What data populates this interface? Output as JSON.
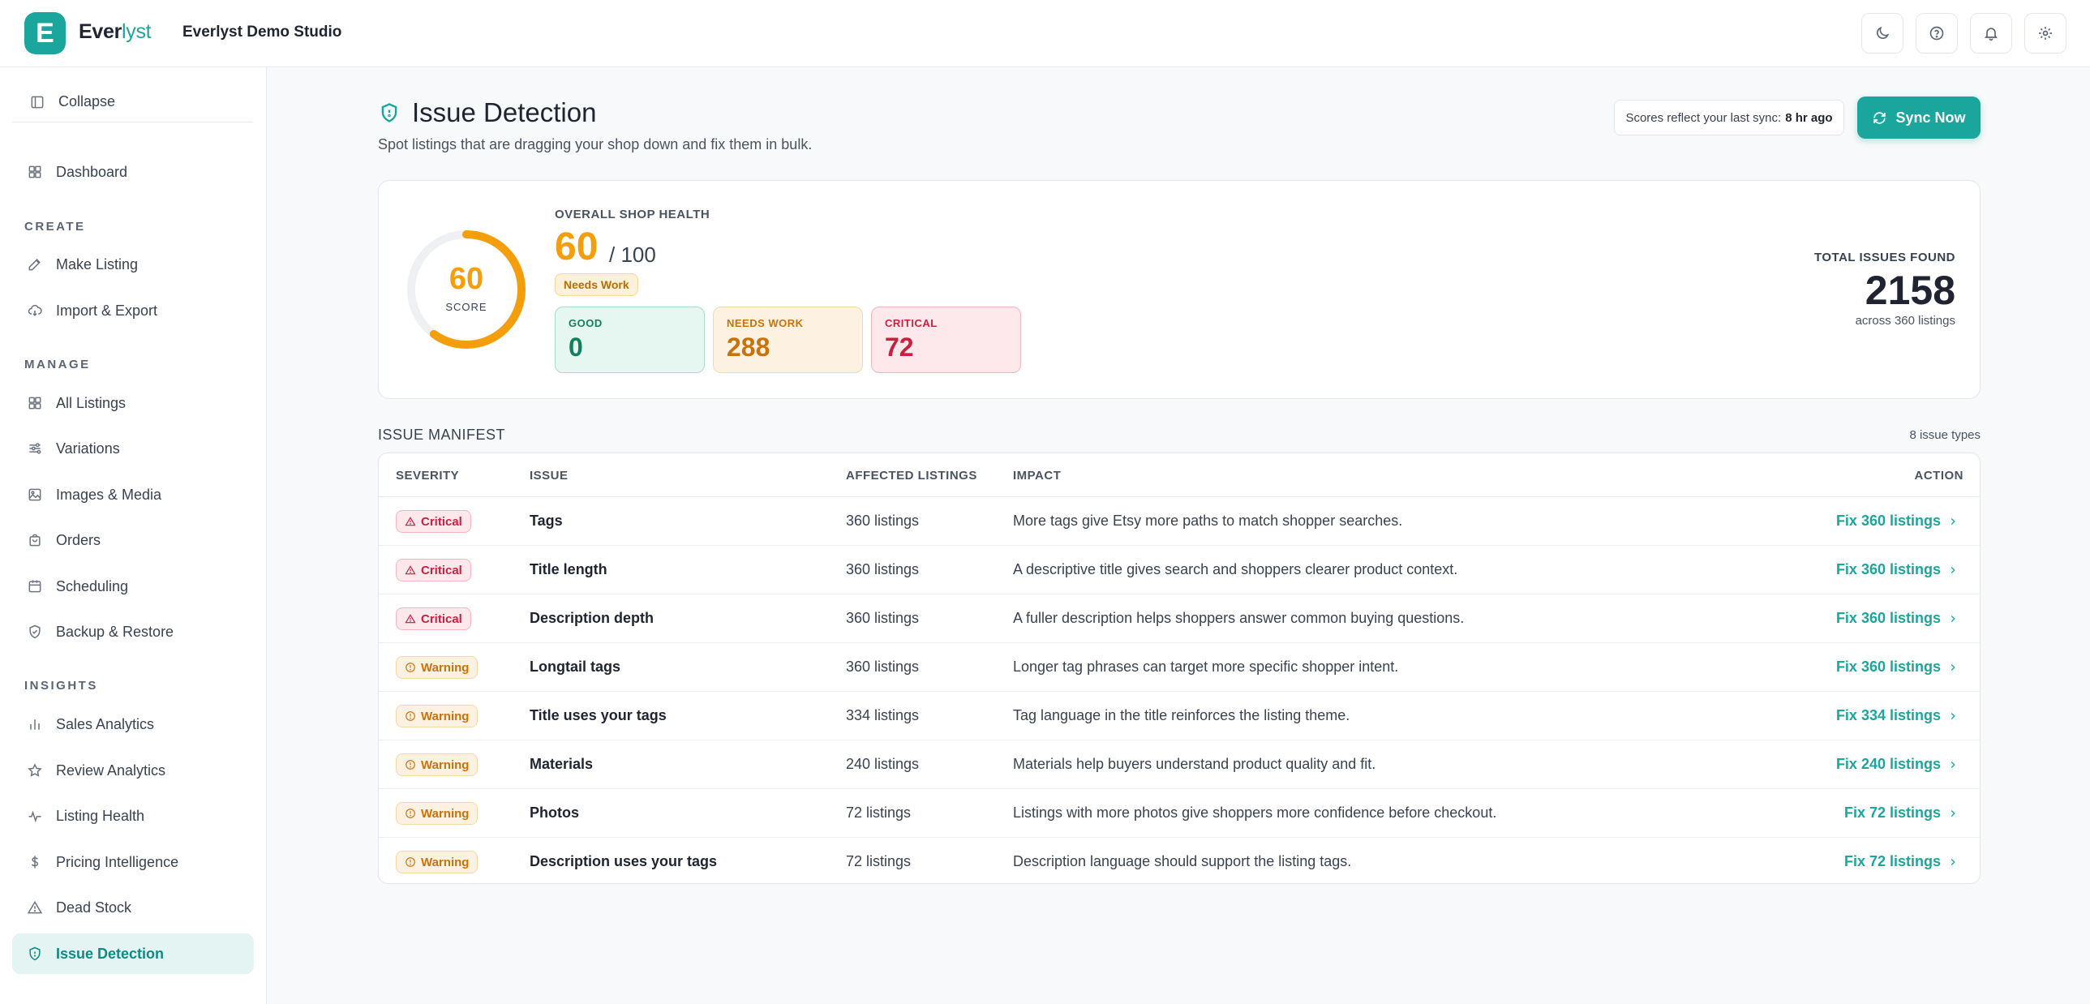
{
  "brand": {
    "logo_letter": "E",
    "name_part1": "Ever",
    "name_part2": "lyst",
    "shop_name": "Everlyst Demo Studio",
    "accent_color": "#1aa59d"
  },
  "topbar_icons": [
    "moon-icon",
    "help-icon",
    "bell-icon",
    "settings-icon"
  ],
  "sidebar": {
    "collapse_label": "Collapse",
    "dashboard_label": "Dashboard",
    "sections": {
      "create": "CREATE",
      "manage": "MANAGE",
      "insights": "INSIGHTS"
    },
    "create_items": [
      {
        "label": "Make Listing",
        "icon": "edit-icon"
      },
      {
        "label": "Import & Export",
        "icon": "cloud-sync-icon"
      }
    ],
    "manage_items": [
      {
        "label": "All Listings",
        "icon": "grid-icon"
      },
      {
        "label": "Variations",
        "icon": "sliders-icon"
      },
      {
        "label": "Images & Media",
        "icon": "image-icon"
      },
      {
        "label": "Orders",
        "icon": "bag-icon"
      },
      {
        "label": "Scheduling",
        "icon": "calendar-icon"
      },
      {
        "label": "Backup & Restore",
        "icon": "shield-check-icon"
      }
    ],
    "insights_items": [
      {
        "label": "Sales Analytics",
        "icon": "bar-chart-icon"
      },
      {
        "label": "Review Analytics",
        "icon": "star-icon"
      },
      {
        "label": "Listing Health",
        "icon": "pulse-icon"
      },
      {
        "label": "Pricing Intelligence",
        "icon": "dollar-icon"
      },
      {
        "label": "Dead Stock",
        "icon": "warning-icon"
      },
      {
        "label": "Issue Detection",
        "icon": "shield-icon",
        "active": true
      }
    ]
  },
  "header": {
    "title": "Issue Detection",
    "subtitle": "Spot listings that are dragging your shop down and fix them in bulk.",
    "sync_note_prefix": "Scores reflect your last sync:",
    "sync_note_time": "8 hr ago",
    "sync_button": "Sync Now"
  },
  "health": {
    "score": "60",
    "score_value": 60,
    "score_max_value": 100,
    "score_label": "SCORE",
    "heading": "OVERALL SHOP HEALTH",
    "score_max": "/ 100",
    "status_badge": "Needs Work",
    "stats": {
      "good": {
        "label": "GOOD",
        "value": "0"
      },
      "needs_work": {
        "label": "NEEDS WORK",
        "value": "288"
      },
      "critical": {
        "label": "CRITICAL",
        "value": "72"
      }
    },
    "total_label": "TOTAL ISSUES FOUND",
    "total_value": "2158",
    "total_sub": "across 360 listings",
    "gauge_color": "#f59e0b"
  },
  "manifest": {
    "title": "ISSUE MANIFEST",
    "count": "8 issue types",
    "columns": {
      "severity": "SEVERITY",
      "issue": "ISSUE",
      "affected": "AFFECTED LISTINGS",
      "impact": "IMPACT",
      "action": "ACTION"
    },
    "rows": [
      {
        "severity": "Critical",
        "issue": "Tags",
        "affected": "360 listings",
        "impact": "More tags give Etsy more paths to match shopper searches.",
        "action": "Fix 360 listings"
      },
      {
        "severity": "Critical",
        "issue": "Title length",
        "affected": "360 listings",
        "impact": "A descriptive title gives search and shoppers clearer product context.",
        "action": "Fix 360 listings"
      },
      {
        "severity": "Critical",
        "issue": "Description depth",
        "affected": "360 listings",
        "impact": "A fuller description helps shoppers answer common buying questions.",
        "action": "Fix 360 listings"
      },
      {
        "severity": "Warning",
        "issue": "Longtail tags",
        "affected": "360 listings",
        "impact": "Longer tag phrases can target more specific shopper intent.",
        "action": "Fix 360 listings"
      },
      {
        "severity": "Warning",
        "issue": "Title uses your tags",
        "affected": "334 listings",
        "impact": "Tag language in the title reinforces the listing theme.",
        "action": "Fix 334 listings"
      },
      {
        "severity": "Warning",
        "issue": "Materials",
        "affected": "240 listings",
        "impact": "Materials help buyers understand product quality and fit.",
        "action": "Fix 240 listings"
      },
      {
        "severity": "Warning",
        "issue": "Photos",
        "affected": "72 listings",
        "impact": "Listings with more photos give shoppers more confidence before checkout.",
        "action": "Fix 72 listings"
      },
      {
        "severity": "Warning",
        "issue": "Description uses your tags",
        "affected": "72 listings",
        "impact": "Description language should support the listing tags.",
        "action": "Fix 72 listings"
      }
    ]
  }
}
